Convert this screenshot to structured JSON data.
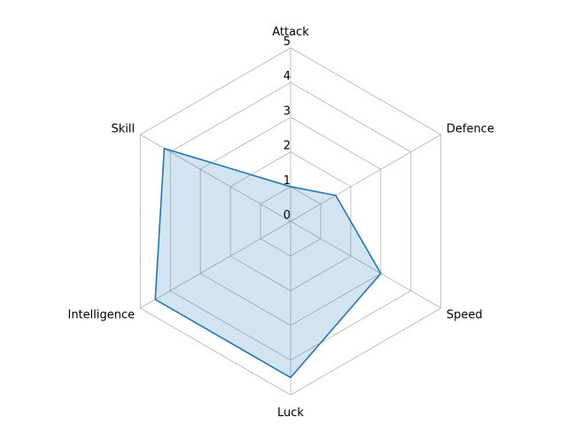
{
  "chart_data": {
    "type": "radar",
    "title": "",
    "categories": [
      "Attack",
      "Defence",
      "Speed",
      "Luck",
      "Intelligence",
      "Skill"
    ],
    "rlim": [
      0,
      5
    ],
    "rticks": [
      "0",
      "1",
      "2",
      "3",
      "4",
      "5"
    ],
    "series": [
      {
        "values": [
          1.0,
          1.5,
          3.0,
          4.5,
          4.5,
          4.2
        ],
        "line_color": "#1f77b4",
        "fill_color": "#1f77b4",
        "fill_opacity": 0.2
      }
    ],
    "grid": true,
    "grid_color": "#b0b0b0",
    "legend": "none"
  }
}
